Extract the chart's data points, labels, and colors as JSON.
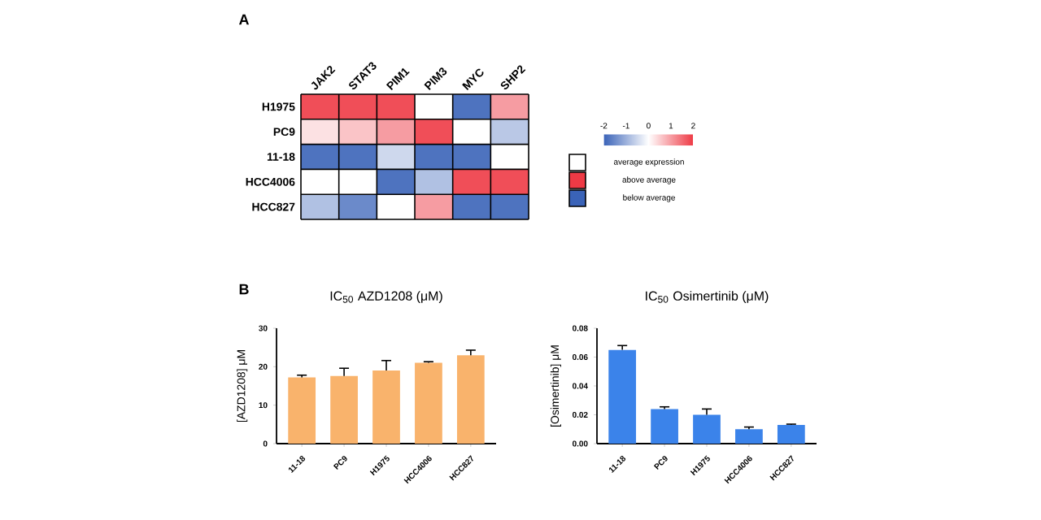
{
  "chart_data": [
    {
      "type": "heatmap",
      "categories": [
        "JAK2",
        "STAT3",
        "PIM1",
        "PIM3",
        "MYC",
        "SHP2"
      ],
      "y_categories": [
        "H1975",
        "PC9",
        "11-18",
        "HCC4006",
        "HCC827"
      ],
      "cells": [
        [
          1.8,
          1.8,
          1.8,
          0,
          -1.8,
          1.0
        ],
        [
          0.3,
          0.6,
          1.0,
          1.8,
          0,
          -0.7
        ],
        [
          -1.8,
          -1.8,
          -0.5,
          -1.8,
          -1.8,
          0
        ],
        [
          0,
          0,
          -1.8,
          -0.8,
          1.8,
          1.8
        ],
        [
          -0.8,
          -1.5,
          0,
          1.0,
          -1.8,
          -1.8
        ]
      ],
      "clim": [
        -2,
        2
      ],
      "cticks": [
        -2,
        -1,
        0,
        1,
        2
      ],
      "grid": true,
      "annotations": [
        "A",
        "average expression",
        "above average",
        "below average"
      ]
    },
    {
      "type": "bar",
      "title": "IC$_{50}$ AZD1208 (μM)",
      "ylabel": "[AZD1208] μM",
      "categories": [
        "11-18",
        "PC9",
        "H1975",
        "HCC4006",
        "HCC827"
      ],
      "values": [
        17.2,
        17.6,
        19,
        21,
        23
      ],
      "errors": [
        0.6,
        2,
        2.6,
        0.3,
        1.3
      ],
      "color": "#f9b36c",
      "ylim": [
        0,
        30
      ],
      "yticks": [
        0,
        10,
        20,
        30
      ],
      "annotations": [
        "B"
      ]
    },
    {
      "type": "bar",
      "title": "IC$_{50}$ Osimertinib (μM)",
      "ylabel": "[Osimertinib] μM",
      "categories": [
        "11-18",
        "PC9",
        "H1975",
        "HCC4006",
        "HCC827"
      ],
      "values": [
        0.065,
        0.024,
        0.02,
        0.01,
        0.013
      ],
      "errors": [
        0.003,
        0.0015,
        0.004,
        0.0015,
        0.0005
      ],
      "color": "#3b83ea",
      "ylim": [
        0,
        0.08
      ],
      "yticks": [
        {
          "value": 0,
          "label": "0.00"
        },
        {
          "value": 0.02,
          "label": "0.02"
        },
        {
          "value": 0.04,
          "label": "0.04"
        },
        {
          "value": 0.06,
          "label": "0.06"
        },
        {
          "value": 0.08,
          "label": "0.08"
        }
      ]
    }
  ]
}
